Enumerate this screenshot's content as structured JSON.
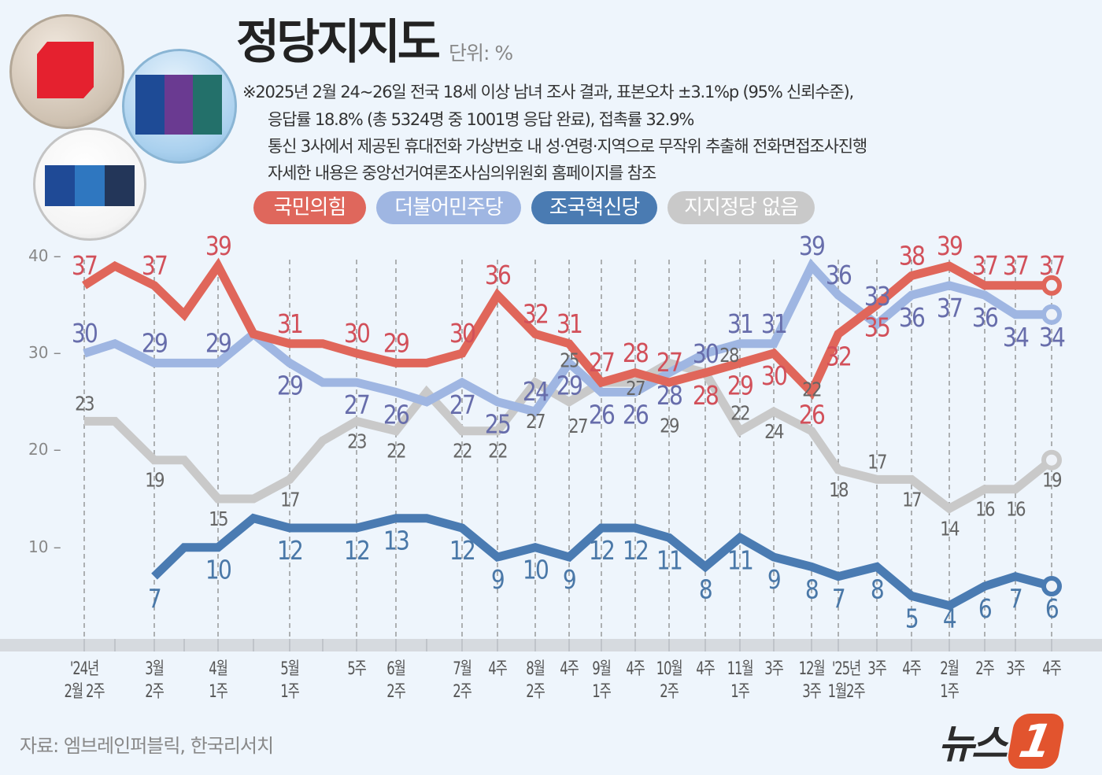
{
  "header": {
    "title": "정당지지도",
    "unit": "단위: %",
    "notes": [
      "※2025년 2월 24~26일 전국 18세 이상 남녀 조사 결과, 표본오차 ±3.1%p (95% 신뢰수준),",
      "응답률 18.8% (총 5324명 중 1001명 응답 완료), 접촉률 32.9%",
      "통신 3사에서 제공된 휴대전화 가상번호 내 성·연령·지역으로 무작위 추출해 전화면접조사진행",
      "자세한 내용은 중앙선거여론조사심의위원회 홈페이지를 참조"
    ]
  },
  "logos": [
    "party-logo-red-cube",
    "party-logo-blue-flag",
    "party-logo-blue-stripes"
  ],
  "footer": {
    "source": "자료: 엠브레인퍼블릭, 한국리서치",
    "brand": "뉴스",
    "brand_mark": "1"
  },
  "chart_data": {
    "type": "line",
    "title": "정당지지도",
    "ylabel": "단위: %",
    "ylim": [
      0,
      40
    ],
    "yticks": [
      "40",
      "30",
      "20",
      "10"
    ],
    "grid": "vertical dashed at labeled weeks",
    "legend_placement": "top",
    "categories": [
      [
        "'24년",
        "2월 2주"
      ],
      [
        "",
        ""
      ],
      [
        "3월",
        "2주"
      ],
      [
        "",
        ""
      ],
      [
        "4월",
        "1주"
      ],
      [
        "",
        ""
      ],
      [
        "5월",
        "1주"
      ],
      [
        "",
        ""
      ],
      [
        "5주",
        ""
      ],
      [
        "6월",
        "2주"
      ],
      [
        "",
        ""
      ],
      [
        "7월",
        "2주"
      ],
      [
        "4주",
        ""
      ],
      [
        "8월",
        "2주"
      ],
      [
        "4주",
        ""
      ],
      [
        "9월",
        "1주"
      ],
      [
        "4주",
        ""
      ],
      [
        "10월",
        "2주"
      ],
      [
        "4주",
        ""
      ],
      [
        "11월",
        "1주"
      ],
      [
        "3주",
        ""
      ],
      [
        "12월",
        "3주"
      ],
      [
        "'25년",
        "1월2주"
      ],
      [
        "3주",
        ""
      ],
      [
        "4주",
        ""
      ],
      [
        "2월",
        "1주"
      ],
      [
        "2주",
        ""
      ],
      [
        "3주",
        ""
      ],
      [
        "4주",
        ""
      ]
    ],
    "series": [
      {
        "name": "국민의힘",
        "color": "#e0665a",
        "label_color": "#d2505a",
        "values": [
          37,
          39,
          37,
          34,
          39,
          32,
          31,
          31,
          30,
          29,
          29,
          30,
          36,
          32,
          31,
          27,
          28,
          27,
          28,
          29,
          30,
          26,
          32,
          35,
          38,
          39,
          37,
          37,
          37
        ],
        "labeled": [
          true,
          false,
          true,
          false,
          true,
          false,
          true,
          false,
          true,
          true,
          false,
          true,
          true,
          true,
          true,
          true,
          true,
          true,
          true,
          true,
          true,
          true,
          true,
          true,
          true,
          true,
          true,
          true,
          true
        ]
      },
      {
        "name": "더불어민주당",
        "color": "#9fb6e2",
        "label_color": "#676dab",
        "values": [
          30,
          31,
          29,
          29,
          29,
          32,
          29,
          27,
          27,
          26,
          25,
          27,
          25,
          24,
          29,
          26,
          26,
          28,
          30,
          31,
          31,
          39,
          36,
          33,
          36,
          37,
          36,
          34,
          34
        ],
        "labeled": [
          true,
          false,
          true,
          false,
          true,
          false,
          true,
          false,
          true,
          true,
          false,
          true,
          true,
          true,
          true,
          true,
          true,
          true,
          true,
          true,
          true,
          true,
          true,
          true,
          true,
          true,
          true,
          true,
          true
        ]
      },
      {
        "name": "조국혁신당",
        "color": "#4a7bb2",
        "label_color": "#4a78a8",
        "values": [
          null,
          null,
          7,
          10,
          10,
          13,
          12,
          12,
          12,
          13,
          13,
          12,
          9,
          10,
          9,
          12,
          12,
          11,
          8,
          11,
          9,
          8,
          7,
          8,
          5,
          4,
          6,
          7,
          6
        ],
        "labeled": [
          false,
          false,
          true,
          false,
          true,
          false,
          true,
          false,
          true,
          true,
          false,
          true,
          true,
          true,
          true,
          true,
          true,
          true,
          true,
          true,
          true,
          true,
          true,
          true,
          true,
          true,
          true,
          true,
          true
        ]
      },
      {
        "name": "지지정당 없음",
        "color": "#c9c9c9",
        "label_color": "#666666",
        "values": [
          23,
          23,
          19,
          19,
          15,
          15,
          17,
          21,
          23,
          22,
          26,
          22,
          22,
          27,
          25,
          27,
          27,
          29,
          28,
          22,
          24,
          22,
          18,
          17,
          17,
          14,
          16,
          16,
          19
        ],
        "labeled": [
          true,
          false,
          true,
          false,
          true,
          false,
          true,
          false,
          true,
          true,
          false,
          true,
          true,
          true,
          true,
          true,
          true,
          true,
          true,
          true,
          true,
          true,
          true,
          true,
          true,
          true,
          true,
          true,
          true
        ]
      }
    ]
  }
}
